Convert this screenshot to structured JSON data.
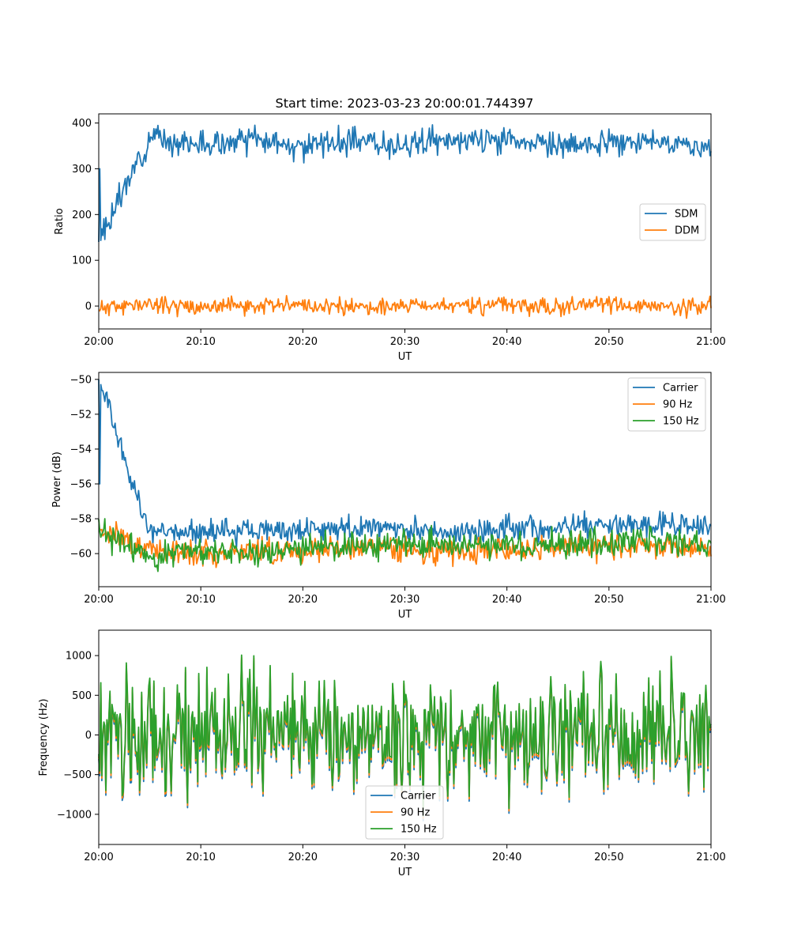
{
  "figure": {
    "title": "Start time: 2023-03-23 20:00:01.744397"
  },
  "chart_data": [
    {
      "type": "line",
      "xlabel": "UT",
      "ylabel": "Ratio",
      "xlim": [
        "20:00",
        "21:00"
      ],
      "ylim": [
        -50,
        420
      ],
      "xticks": [
        "20:00",
        "20:10",
        "20:20",
        "20:30",
        "20:40",
        "20:50",
        "21:00"
      ],
      "yticks": [
        0,
        100,
        200,
        300,
        400
      ],
      "legend": "center-right",
      "series": [
        {
          "name": "SDM",
          "color": "#1f77b4",
          "base": 355,
          "noise": 14,
          "start": 140,
          "seed": 3,
          "x": [
            "20:00",
            "20:05",
            "20:10",
            "20:15",
            "20:20",
            "20:25",
            "20:30",
            "20:35",
            "20:40",
            "20:45",
            "20:50",
            "20:55",
            "21:00"
          ],
          "y": [
            140,
            370,
            352,
            362,
            350,
            360,
            355,
            360,
            365,
            350,
            352,
            360,
            345
          ]
        },
        {
          "name": "DDM",
          "color": "#ff7f0e",
          "base": 0,
          "noise": 9,
          "seed": 11,
          "x": [
            "20:00",
            "20:05",
            "20:10",
            "20:15",
            "20:20",
            "20:25",
            "20:30",
            "20:35",
            "20:40",
            "20:45",
            "20:50",
            "20:55",
            "21:00"
          ],
          "y": [
            -5,
            5,
            -2,
            0,
            3,
            -4,
            2,
            0,
            4,
            -3,
            5,
            -4,
            0
          ]
        }
      ]
    },
    {
      "type": "line",
      "xlabel": "UT",
      "ylabel": "Power (dB)",
      "xlim": [
        "20:00",
        "21:00"
      ],
      "ylim": [
        -61.9,
        -49.6
      ],
      "xticks": [
        "20:00",
        "20:10",
        "20:20",
        "20:30",
        "20:40",
        "20:50",
        "21:00"
      ],
      "yticks": [
        -50,
        -52,
        -54,
        -56,
        -58,
        -60
      ],
      "legend": "upper-right",
      "series": [
        {
          "name": "Carrier",
          "color": "#1f77b4",
          "base": -58.7,
          "noise": 0.35,
          "start": -50,
          "seed": 5,
          "x": [
            "20:00",
            "20:05",
            "20:10",
            "20:15",
            "20:20",
            "20:25",
            "20:30",
            "20:35",
            "20:40",
            "20:45",
            "20:50",
            "20:55",
            "21:00"
          ],
          "y": [
            -50,
            -58.9,
            -58.8,
            -58.6,
            -58.7,
            -58.5,
            -58.6,
            -58.8,
            -58.5,
            -58.5,
            -58.4,
            -58.3,
            -58.4
          ]
        },
        {
          "name": "90 Hz",
          "color": "#ff7f0e",
          "base": -59.8,
          "noise": 0.35,
          "seed": 17,
          "x": [
            "20:00",
            "20:05",
            "20:10",
            "20:15",
            "20:20",
            "20:25",
            "20:30",
            "20:35",
            "20:40",
            "20:45",
            "20:50",
            "20:55",
            "21:00"
          ],
          "y": [
            -58.5,
            -59.8,
            -59.9,
            -59.9,
            -59.8,
            -59.7,
            -59.8,
            -59.9,
            -59.7,
            -59.6,
            -59.6,
            -59.5,
            -59.8
          ]
        },
        {
          "name": "150 Hz",
          "color": "#2ca02c",
          "base": -59.7,
          "noise": 0.4,
          "seed": 23,
          "x": [
            "20:00",
            "20:05",
            "20:10",
            "20:15",
            "20:20",
            "20:25",
            "20:30",
            "20:35",
            "20:40",
            "20:45",
            "20:50",
            "20:55",
            "21:00"
          ],
          "y": [
            -58.8,
            -60.1,
            -59.8,
            -59.9,
            -59.7,
            -59.6,
            -59.5,
            -59.4,
            -59.5,
            -59.5,
            -59.4,
            -59.3,
            -59.6
          ]
        }
      ]
    },
    {
      "type": "line",
      "xlabel": "UT",
      "ylabel": "Frequency (Hz)",
      "xlim": [
        "20:00",
        "21:00"
      ],
      "ylim": [
        -1380,
        1320
      ],
      "xticks": [
        "20:00",
        "20:10",
        "20:20",
        "20:30",
        "20:40",
        "20:50",
        "21:00"
      ],
      "yticks": [
        1000,
        500,
        0,
        -500,
        -1000
      ],
      "legend": "lower-center",
      "series": [
        {
          "name": "Carrier",
          "color": "#1f77b4",
          "offset": -60,
          "noise": 380,
          "seed": 31,
          "x": [
            "20:00",
            "20:05",
            "20:10",
            "20:15",
            "20:20",
            "20:25",
            "20:30",
            "20:35",
            "20:40",
            "20:45",
            "20:50",
            "20:55",
            "21:00"
          ],
          "y": [
            -100,
            -50,
            0,
            -80,
            50,
            -60,
            -20,
            -40,
            -80,
            20,
            -60,
            -20,
            -100
          ]
        },
        {
          "name": "90 Hz",
          "color": "#ff7f0e",
          "offset": -30,
          "noise": 380,
          "seed": 31,
          "x": [
            "20:00",
            "20:05",
            "20:10",
            "20:15",
            "20:20",
            "20:25",
            "20:30",
            "20:35",
            "20:40",
            "20:45",
            "20:50",
            "20:55",
            "21:00"
          ],
          "y": [
            -70,
            -20,
            30,
            -50,
            80,
            -30,
            10,
            -10,
            -50,
            50,
            -30,
            10,
            -70
          ]
        },
        {
          "name": "150 Hz",
          "color": "#2ca02c",
          "offset": 0,
          "noise": 380,
          "seed": 31,
          "x": [
            "20:00",
            "20:05",
            "20:10",
            "20:15",
            "20:20",
            "20:25",
            "20:30",
            "20:35",
            "20:40",
            "20:45",
            "20:50",
            "20:55",
            "21:00"
          ],
          "y": [
            -40,
            10,
            60,
            -20,
            110,
            0,
            40,
            20,
            -20,
            80,
            0,
            40,
            -40
          ]
        }
      ]
    }
  ]
}
